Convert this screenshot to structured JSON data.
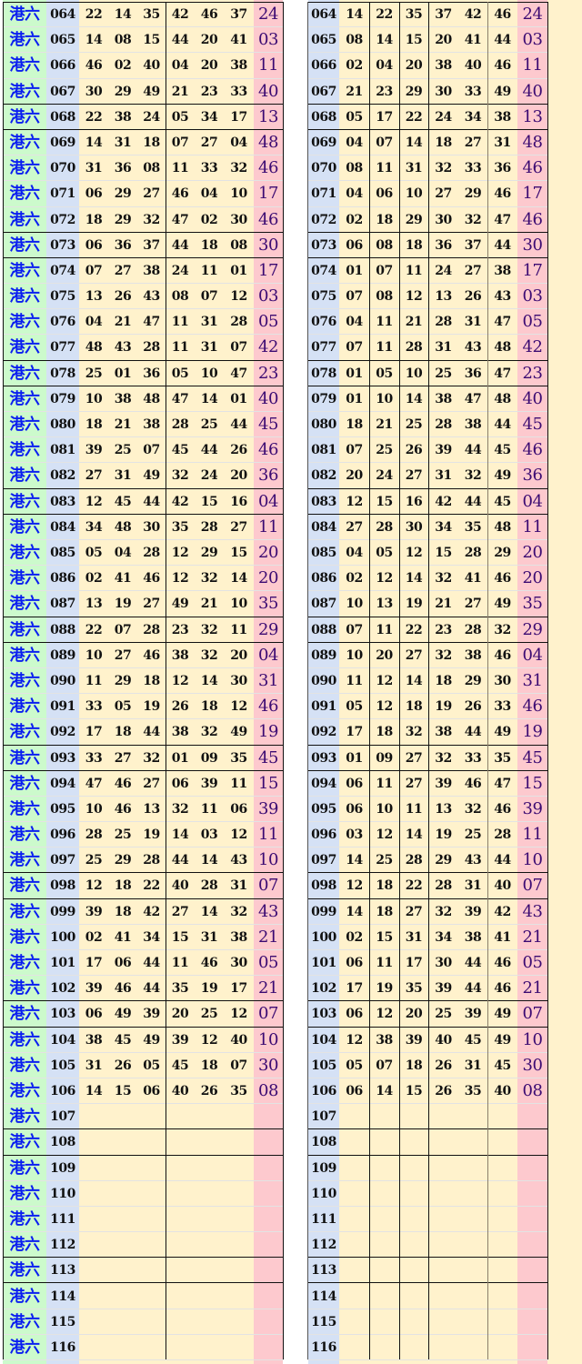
{
  "label": "港六",
  "colors": {
    "label_bg": "#ccfacc",
    "period_bg": "#d5e1f5",
    "numbers_bg": "#fff2cc",
    "special_bg": "#fdc9ce",
    "label_text": "#0a1ef0",
    "special_text": "#3b0a72"
  },
  "rows": [
    {
      "period": "064",
      "nums": [
        "22",
        "14",
        "35",
        "42",
        "46",
        "37"
      ],
      "special": "24",
      "sorted": [
        "14",
        "22",
        "35",
        "37",
        "42",
        "46"
      ]
    },
    {
      "period": "065",
      "nums": [
        "14",
        "08",
        "15",
        "44",
        "20",
        "41"
      ],
      "special": "03",
      "sorted": [
        "08",
        "14",
        "15",
        "20",
        "41",
        "44"
      ]
    },
    {
      "period": "066",
      "nums": [
        "46",
        "02",
        "40",
        "04",
        "20",
        "38"
      ],
      "special": "11",
      "sorted": [
        "02",
        "04",
        "20",
        "38",
        "40",
        "46"
      ]
    },
    {
      "period": "067",
      "nums": [
        "30",
        "29",
        "49",
        "21",
        "23",
        "33"
      ],
      "special": "40",
      "sorted": [
        "21",
        "23",
        "29",
        "30",
        "33",
        "49"
      ]
    },
    {
      "period": "068",
      "nums": [
        "22",
        "38",
        "24",
        "05",
        "34",
        "17"
      ],
      "special": "13",
      "sorted": [
        "05",
        "17",
        "22",
        "24",
        "34",
        "38"
      ]
    },
    {
      "period": "069",
      "nums": [
        "14",
        "31",
        "18",
        "07",
        "27",
        "04"
      ],
      "special": "48",
      "sorted": [
        "04",
        "07",
        "14",
        "18",
        "27",
        "31"
      ]
    },
    {
      "period": "070",
      "nums": [
        "31",
        "36",
        "08",
        "11",
        "33",
        "32"
      ],
      "special": "46",
      "sorted": [
        "08",
        "11",
        "31",
        "32",
        "33",
        "36"
      ]
    },
    {
      "period": "071",
      "nums": [
        "06",
        "29",
        "27",
        "46",
        "04",
        "10"
      ],
      "special": "17",
      "sorted": [
        "04",
        "06",
        "10",
        "27",
        "29",
        "46"
      ]
    },
    {
      "period": "072",
      "nums": [
        "18",
        "29",
        "32",
        "47",
        "02",
        "30"
      ],
      "special": "46",
      "sorted": [
        "02",
        "18",
        "29",
        "30",
        "32",
        "47"
      ]
    },
    {
      "period": "073",
      "nums": [
        "06",
        "36",
        "37",
        "44",
        "18",
        "08"
      ],
      "special": "30",
      "sorted": [
        "06",
        "08",
        "18",
        "36",
        "37",
        "44"
      ]
    },
    {
      "period": "074",
      "nums": [
        "07",
        "27",
        "38",
        "24",
        "11",
        "01"
      ],
      "special": "17",
      "sorted": [
        "01",
        "07",
        "11",
        "24",
        "27",
        "38"
      ]
    },
    {
      "period": "075",
      "nums": [
        "13",
        "26",
        "43",
        "08",
        "07",
        "12"
      ],
      "special": "03",
      "sorted": [
        "07",
        "08",
        "12",
        "13",
        "26",
        "43"
      ]
    },
    {
      "period": "076",
      "nums": [
        "04",
        "21",
        "47",
        "11",
        "31",
        "28"
      ],
      "special": "05",
      "sorted": [
        "04",
        "11",
        "21",
        "28",
        "31",
        "47"
      ]
    },
    {
      "period": "077",
      "nums": [
        "48",
        "43",
        "28",
        "11",
        "31",
        "07"
      ],
      "special": "42",
      "sorted": [
        "07",
        "11",
        "28",
        "31",
        "43",
        "48"
      ]
    },
    {
      "period": "078",
      "nums": [
        "25",
        "01",
        "36",
        "05",
        "10",
        "47"
      ],
      "special": "23",
      "sorted": [
        "01",
        "05",
        "10",
        "25",
        "36",
        "47"
      ]
    },
    {
      "period": "079",
      "nums": [
        "10",
        "38",
        "48",
        "47",
        "14",
        "01"
      ],
      "special": "40",
      "sorted": [
        "01",
        "10",
        "14",
        "38",
        "47",
        "48"
      ]
    },
    {
      "period": "080",
      "nums": [
        "18",
        "21",
        "38",
        "28",
        "25",
        "44"
      ],
      "special": "45",
      "sorted": [
        "18",
        "21",
        "25",
        "28",
        "38",
        "44"
      ]
    },
    {
      "period": "081",
      "nums": [
        "39",
        "25",
        "07",
        "45",
        "44",
        "26"
      ],
      "special": "46",
      "sorted": [
        "07",
        "25",
        "26",
        "39",
        "44",
        "45"
      ]
    },
    {
      "period": "082",
      "nums": [
        "27",
        "31",
        "49",
        "32",
        "24",
        "20"
      ],
      "special": "36",
      "sorted": [
        "20",
        "24",
        "27",
        "31",
        "32",
        "49"
      ]
    },
    {
      "period": "083",
      "nums": [
        "12",
        "45",
        "44",
        "42",
        "15",
        "16"
      ],
      "special": "04",
      "sorted": [
        "12",
        "15",
        "16",
        "42",
        "44",
        "45"
      ]
    },
    {
      "period": "084",
      "nums": [
        "34",
        "48",
        "30",
        "35",
        "28",
        "27"
      ],
      "special": "11",
      "sorted": [
        "27",
        "28",
        "30",
        "34",
        "35",
        "48"
      ]
    },
    {
      "period": "085",
      "nums": [
        "05",
        "04",
        "28",
        "12",
        "29",
        "15"
      ],
      "special": "20",
      "sorted": [
        "04",
        "05",
        "12",
        "15",
        "28",
        "29"
      ]
    },
    {
      "period": "086",
      "nums": [
        "02",
        "41",
        "46",
        "12",
        "32",
        "14"
      ],
      "special": "20",
      "sorted": [
        "02",
        "12",
        "14",
        "32",
        "41",
        "46"
      ]
    },
    {
      "period": "087",
      "nums": [
        "13",
        "19",
        "27",
        "49",
        "21",
        "10"
      ],
      "special": "35",
      "sorted": [
        "10",
        "13",
        "19",
        "21",
        "27",
        "49"
      ]
    },
    {
      "period": "088",
      "nums": [
        "22",
        "07",
        "28",
        "23",
        "32",
        "11"
      ],
      "special": "29",
      "sorted": [
        "07",
        "11",
        "22",
        "23",
        "28",
        "32"
      ]
    },
    {
      "period": "089",
      "nums": [
        "10",
        "27",
        "46",
        "38",
        "32",
        "20"
      ],
      "special": "04",
      "sorted": [
        "10",
        "20",
        "27",
        "32",
        "38",
        "46"
      ]
    },
    {
      "period": "090",
      "nums": [
        "11",
        "29",
        "18",
        "12",
        "14",
        "30"
      ],
      "special": "31",
      "sorted": [
        "11",
        "12",
        "14",
        "18",
        "29",
        "30"
      ]
    },
    {
      "period": "091",
      "nums": [
        "33",
        "05",
        "19",
        "26",
        "18",
        "12"
      ],
      "special": "46",
      "sorted": [
        "05",
        "12",
        "18",
        "19",
        "26",
        "33"
      ]
    },
    {
      "period": "092",
      "nums": [
        "17",
        "18",
        "44",
        "38",
        "32",
        "49"
      ],
      "special": "19",
      "sorted": [
        "17",
        "18",
        "32",
        "38",
        "44",
        "49"
      ]
    },
    {
      "period": "093",
      "nums": [
        "33",
        "27",
        "32",
        "01",
        "09",
        "35"
      ],
      "special": "45",
      "sorted": [
        "01",
        "09",
        "27",
        "32",
        "33",
        "35"
      ]
    },
    {
      "period": "094",
      "nums": [
        "47",
        "46",
        "27",
        "06",
        "39",
        "11"
      ],
      "special": "15",
      "sorted": [
        "06",
        "11",
        "27",
        "39",
        "46",
        "47"
      ]
    },
    {
      "period": "095",
      "nums": [
        "10",
        "46",
        "13",
        "32",
        "11",
        "06"
      ],
      "special": "39",
      "sorted": [
        "06",
        "10",
        "11",
        "13",
        "32",
        "46"
      ]
    },
    {
      "period": "096",
      "nums": [
        "28",
        "25",
        "19",
        "14",
        "03",
        "12"
      ],
      "special": "11",
      "sorted": [
        "03",
        "12",
        "14",
        "19",
        "25",
        "28"
      ]
    },
    {
      "period": "097",
      "nums": [
        "25",
        "29",
        "28",
        "44",
        "14",
        "43"
      ],
      "special": "10",
      "sorted": [
        "14",
        "25",
        "28",
        "29",
        "43",
        "44"
      ]
    },
    {
      "period": "098",
      "nums": [
        "12",
        "18",
        "22",
        "40",
        "28",
        "31"
      ],
      "special": "07",
      "sorted": [
        "12",
        "18",
        "22",
        "28",
        "31",
        "40"
      ]
    },
    {
      "period": "099",
      "nums": [
        "39",
        "18",
        "42",
        "27",
        "14",
        "32"
      ],
      "special": "43",
      "sorted": [
        "14",
        "18",
        "27",
        "32",
        "39",
        "42"
      ]
    },
    {
      "period": "100",
      "nums": [
        "02",
        "41",
        "34",
        "15",
        "31",
        "38"
      ],
      "special": "21",
      "sorted": [
        "02",
        "15",
        "31",
        "34",
        "38",
        "41"
      ]
    },
    {
      "period": "101",
      "nums": [
        "17",
        "06",
        "44",
        "11",
        "46",
        "30"
      ],
      "special": "05",
      "sorted": [
        "06",
        "11",
        "17",
        "30",
        "44",
        "46"
      ]
    },
    {
      "period": "102",
      "nums": [
        "39",
        "46",
        "44",
        "35",
        "19",
        "17"
      ],
      "special": "21",
      "sorted": [
        "17",
        "19",
        "35",
        "39",
        "44",
        "46"
      ]
    },
    {
      "period": "103",
      "nums": [
        "06",
        "49",
        "39",
        "20",
        "25",
        "12"
      ],
      "special": "07",
      "sorted": [
        "06",
        "12",
        "20",
        "25",
        "39",
        "49"
      ]
    },
    {
      "period": "104",
      "nums": [
        "38",
        "45",
        "49",
        "39",
        "12",
        "40"
      ],
      "special": "10",
      "sorted": [
        "12",
        "38",
        "39",
        "40",
        "45",
        "49"
      ]
    },
    {
      "period": "105",
      "nums": [
        "31",
        "26",
        "05",
        "45",
        "18",
        "07"
      ],
      "special": "30",
      "sorted": [
        "05",
        "07",
        "18",
        "26",
        "31",
        "45"
      ]
    },
    {
      "period": "106",
      "nums": [
        "14",
        "15",
        "06",
        "40",
        "26",
        "35"
      ],
      "special": "08",
      "sorted": [
        "06",
        "14",
        "15",
        "26",
        "35",
        "40"
      ]
    },
    {
      "period": "107"
    },
    {
      "period": "108"
    },
    {
      "period": "109"
    },
    {
      "period": "110"
    },
    {
      "period": "111"
    },
    {
      "period": "112"
    },
    {
      "period": "113"
    },
    {
      "period": "114"
    },
    {
      "period": "115"
    },
    {
      "period": "116"
    }
  ]
}
